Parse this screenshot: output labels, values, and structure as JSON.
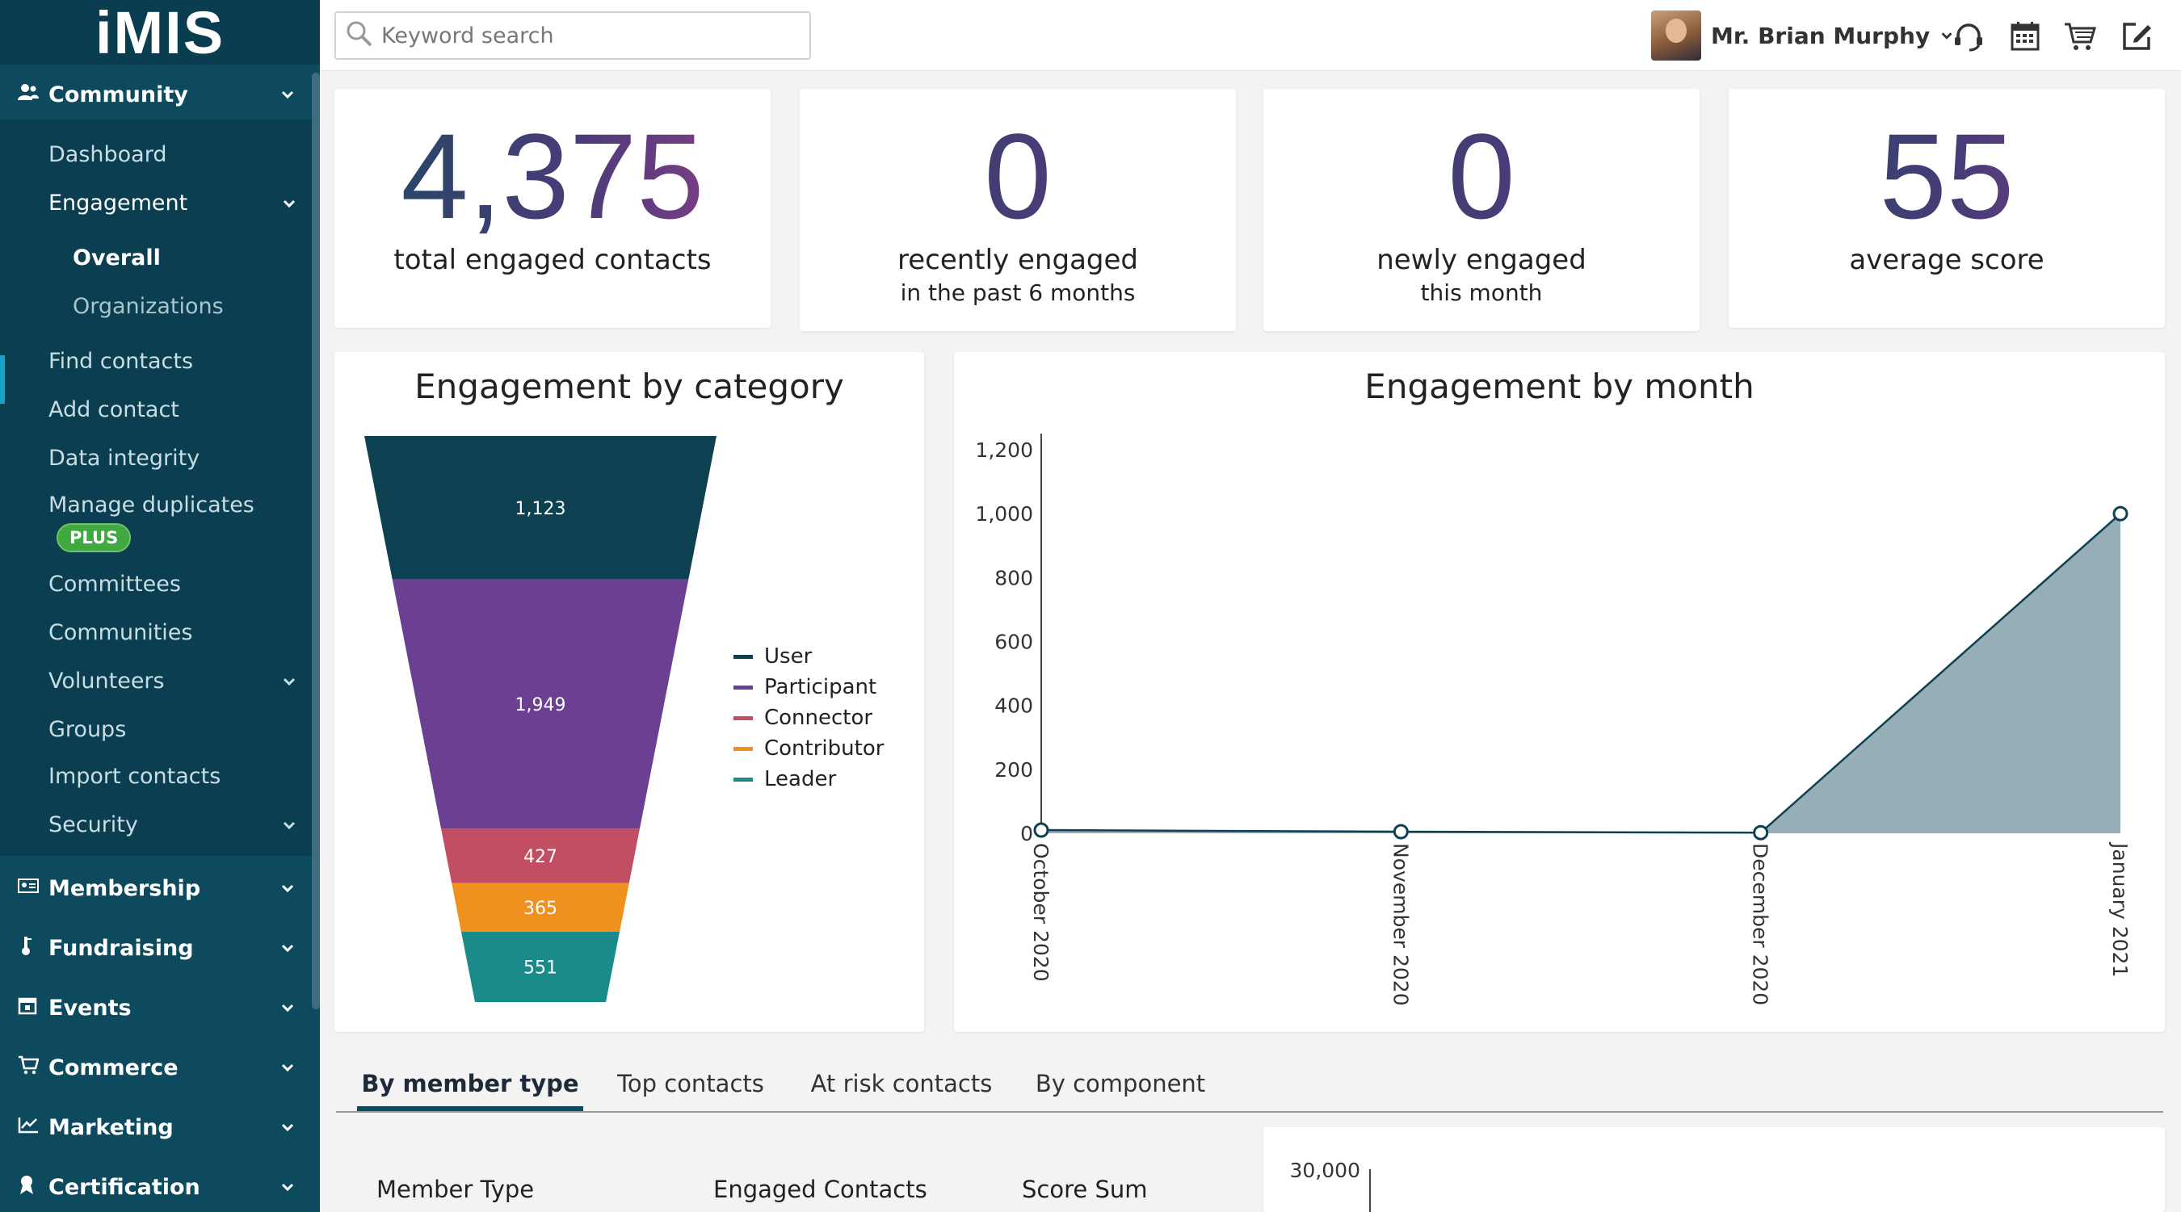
{
  "app": {
    "logo": "iMIS"
  },
  "sidebar": {
    "community": {
      "label": "Community",
      "icon": "community-icon"
    },
    "items": [
      {
        "label": "Dashboard"
      },
      {
        "label": "Engagement"
      },
      {
        "label": "Overall"
      },
      {
        "label": "Organizations"
      },
      {
        "label": "Find contacts"
      },
      {
        "label": "Add contact"
      },
      {
        "label": "Data integrity"
      },
      {
        "label": "Manage duplicates"
      },
      {
        "label": "Committees"
      },
      {
        "label": "Communities"
      },
      {
        "label": "Volunteers"
      },
      {
        "label": "Groups"
      },
      {
        "label": "Import contacts"
      },
      {
        "label": "Security"
      }
    ],
    "plus_badge": "PLUS",
    "sections": [
      {
        "label": "Membership",
        "icon": "membership-card-icon"
      },
      {
        "label": "Fundraising",
        "icon": "fundraising-icon"
      },
      {
        "label": "Events",
        "icon": "calendar-icon"
      },
      {
        "label": "Commerce",
        "icon": "cart-icon"
      },
      {
        "label": "Marketing",
        "icon": "chart-line-icon"
      },
      {
        "label": "Certification",
        "icon": "ribbon-icon"
      }
    ]
  },
  "header": {
    "search_placeholder": "Keyword search",
    "user_name": "Mr. Brian Murphy",
    "icons": [
      "support-headset-icon",
      "calendar-icon",
      "cart-icon",
      "edit-icon"
    ]
  },
  "kpis": [
    {
      "value": "4,375",
      "label": "total engaged contacts",
      "sub": ""
    },
    {
      "value": "0",
      "label": "recently engaged",
      "sub": "in the past 6 months"
    },
    {
      "value": "0",
      "label": "newly engaged",
      "sub": "this month"
    },
    {
      "value": "55",
      "label": "average score",
      "sub": ""
    }
  ],
  "colors": {
    "sidebar_bg": "#0d4a5e",
    "user": "#0d4152",
    "participant": "#6b3f91",
    "connector": "#c24e63",
    "contributor": "#f0901f",
    "leader": "#1a8a8a",
    "area_fill": "#96aeb6"
  },
  "chart_data": [
    {
      "type": "funnel",
      "title": "Engagement by category",
      "categories": [
        "User",
        "Participant",
        "Connector",
        "Contributor",
        "Leader"
      ],
      "values": [
        1123,
        1949,
        427,
        365,
        551
      ],
      "value_labels": [
        "1,123",
        "1,949",
        "427",
        "365",
        "551"
      ],
      "legend": "right"
    },
    {
      "type": "area",
      "title": "Engagement by month",
      "x": [
        "October 2020",
        "November 2020",
        "December 2020",
        "January 2021"
      ],
      "y": [
        10,
        5,
        2,
        1000
      ],
      "ylim": [
        0,
        1200
      ],
      "yticks": [
        "0",
        "200",
        "400",
        "600",
        "800",
        "1,000",
        "1,200"
      ],
      "grid": false
    },
    {
      "type": "bar",
      "title": "",
      "yticks_visible": [
        "30,000"
      ]
    }
  ],
  "tabs": [
    {
      "label": "By member type",
      "active": true
    },
    {
      "label": "Top contacts",
      "active": false
    },
    {
      "label": "At risk contacts",
      "active": false
    },
    {
      "label": "By component",
      "active": false
    }
  ],
  "table": {
    "columns": [
      "Member Type",
      "Engaged Contacts",
      "Score Sum"
    ]
  }
}
